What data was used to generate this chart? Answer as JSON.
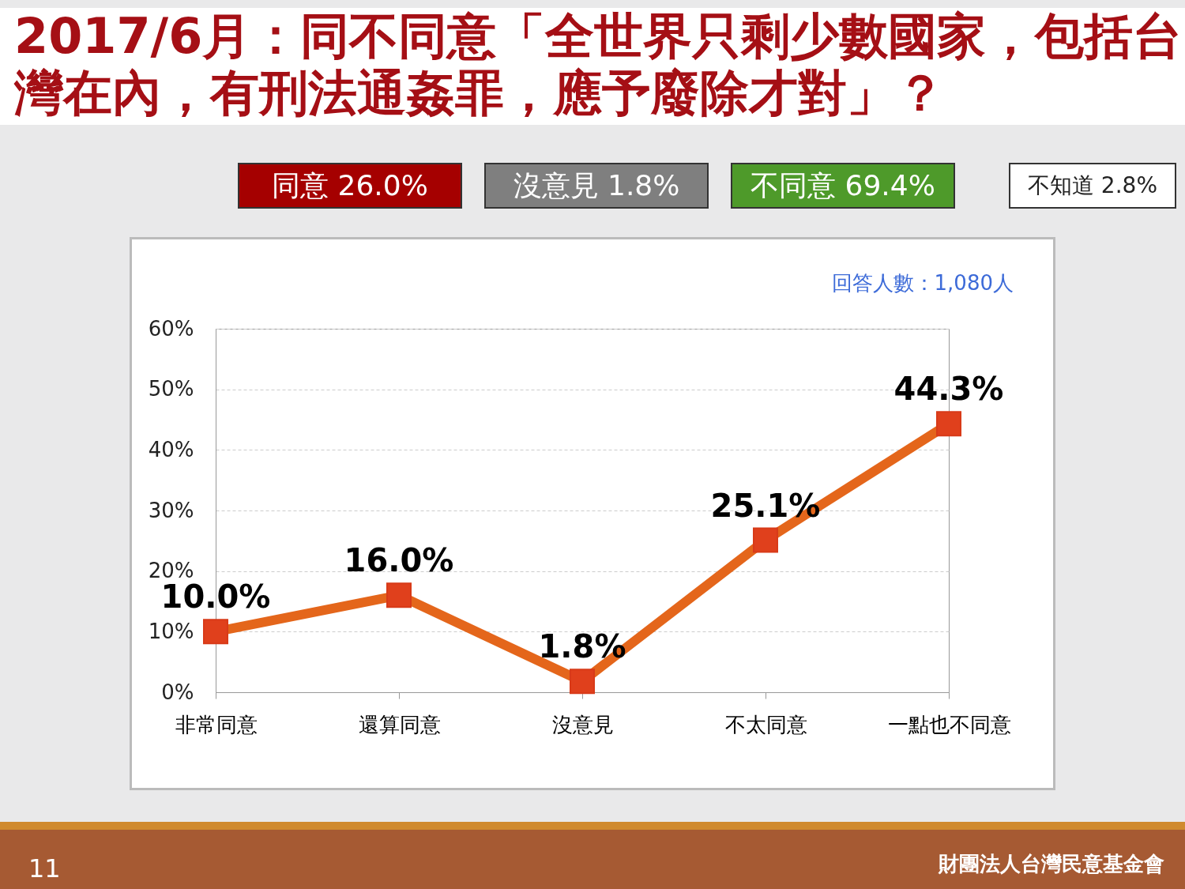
{
  "chart_data": {
    "type": "line",
    "title": "2017/6月：同不同意「全世界只剩少數國家，包括台灣在內，有刑法通姦罪，應予廢除才對」？",
    "categories": [
      "非常同意",
      "還算同意",
      "沒意見",
      "不太同意",
      "一點也不同意"
    ],
    "series": [
      {
        "color": "#e4661b",
        "values": [
          10.0,
          16.0,
          1.8,
          25.1,
          44.3
        ],
        "value_labels": [
          "10.0%",
          "16.0%",
          "1.8%",
          "25.1%",
          "44.3%"
        ]
      }
    ],
    "ylim": [
      0,
      60
    ],
    "yticks": [
      {
        "value": 0,
        "label": "0%"
      },
      {
        "value": 10,
        "label": "10%"
      },
      {
        "value": 20,
        "label": "20%"
      },
      {
        "value": 30,
        "label": "30%"
      },
      {
        "value": 40,
        "label": "40%"
      },
      {
        "value": 50,
        "label": "50%"
      },
      {
        "value": 60,
        "label": "60%"
      }
    ],
    "grid": "y",
    "marker": "square",
    "line_style": "solid",
    "annotations": [
      "同意 26.0%",
      "沒意見 1.8%",
      "不同意 69.4%",
      "不知道 2.8%",
      "回答人數：1,080人",
      "11",
      "財團法人台灣民意基金會"
    ]
  }
}
